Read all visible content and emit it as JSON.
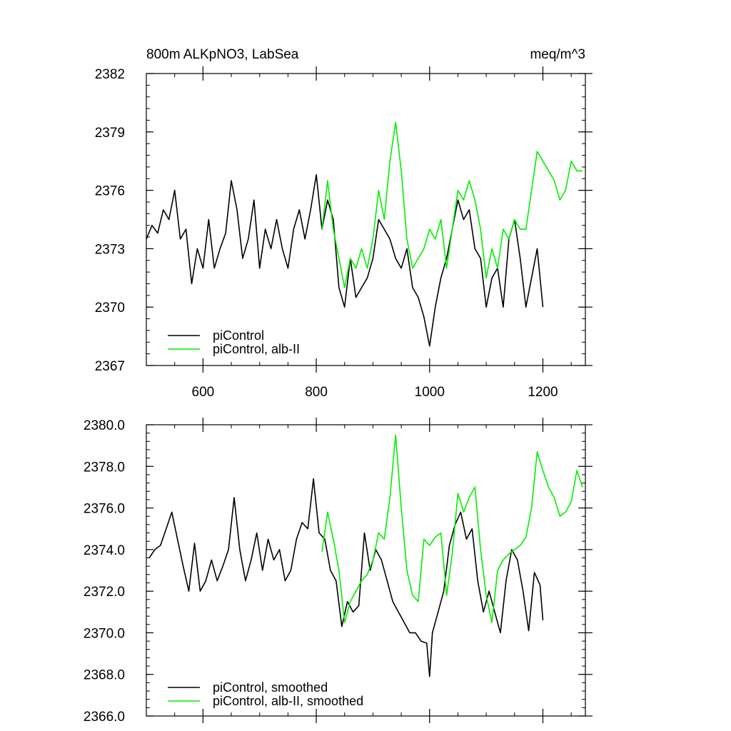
{
  "colors": {
    "black_series": "#000000",
    "green_series": "#00ee00"
  },
  "chart_data": [
    {
      "type": "line",
      "title": "800m ALKpNO3, LabSea",
      "units": "meq/m^3",
      "xlim": [
        500,
        1275
      ],
      "ylim": [
        2367,
        2382
      ],
      "x_ticks": [
        600,
        800,
        1000,
        1200
      ],
      "x_tick_labels": [
        "600",
        "800",
        "1000",
        "1200"
      ],
      "y_ticks": [
        2367,
        2370,
        2373,
        2376,
        2379,
        2382
      ],
      "y_tick_labels": [
        "2367",
        "2370",
        "2373",
        "2376",
        "2379",
        "2382"
      ],
      "legend_position": "bottom-left",
      "grid": false,
      "series": [
        {
          "name": "piControl",
          "color": "#000000",
          "x": [
            500,
            510,
            520,
            530,
            540,
            550,
            560,
            570,
            580,
            590,
            600,
            610,
            620,
            630,
            640,
            650,
            660,
            670,
            680,
            690,
            700,
            710,
            720,
            730,
            740,
            750,
            760,
            770,
            780,
            790,
            800,
            810,
            820,
            830,
            840,
            850,
            860,
            870,
            880,
            890,
            900,
            910,
            920,
            930,
            940,
            950,
            960,
            970,
            980,
            990,
            1000,
            1010,
            1020,
            1030,
            1040,
            1050,
            1060,
            1070,
            1080,
            1090,
            1100,
            1110,
            1120,
            1130,
            1140,
            1150,
            1160,
            1170,
            1180,
            1190,
            1200
          ],
          "values": [
            2373.5,
            2374.2,
            2373.8,
            2375.0,
            2374.5,
            2376.0,
            2373.5,
            2374.0,
            2371.2,
            2373.0,
            2372.0,
            2374.5,
            2372.0,
            2373.0,
            2373.8,
            2376.5,
            2375.0,
            2372.5,
            2373.5,
            2375.5,
            2372.0,
            2374.0,
            2373.0,
            2374.5,
            2373.0,
            2372.0,
            2374.0,
            2375.0,
            2373.5,
            2375.0,
            2376.8,
            2374.0,
            2375.5,
            2374.5,
            2371.0,
            2370.0,
            2372.5,
            2370.5,
            2371.0,
            2371.5,
            2372.5,
            2374.5,
            2374.0,
            2373.5,
            2372.5,
            2372.0,
            2373.0,
            2371.0,
            2370.5,
            2369.5,
            2368.0,
            2370.0,
            2371.5,
            2372.5,
            2374.0,
            2375.5,
            2374.5,
            2375.0,
            2373.0,
            2372.5,
            2370.0,
            2371.5,
            2372.0,
            2370.0,
            2373.5,
            2374.5,
            2372.5,
            2370.0,
            2371.5,
            2373.0,
            2370.0
          ]
        },
        {
          "name": "piControl, alb-II",
          "color": "#00ee00",
          "x": [
            810,
            820,
            830,
            840,
            850,
            860,
            870,
            880,
            890,
            900,
            910,
            920,
            930,
            940,
            950,
            960,
            970,
            980,
            990,
            1000,
            1010,
            1020,
            1030,
            1040,
            1050,
            1060,
            1070,
            1080,
            1090,
            1100,
            1110,
            1120,
            1130,
            1140,
            1150,
            1160,
            1170,
            1180,
            1190,
            1200,
            1210,
            1220,
            1230,
            1240,
            1250,
            1260,
            1270
          ],
          "values": [
            2374.0,
            2376.5,
            2374.0,
            2372.5,
            2371.0,
            2372.5,
            2372.0,
            2373.0,
            2372.0,
            2373.5,
            2376.0,
            2374.5,
            2377.5,
            2379.5,
            2377.0,
            2373.5,
            2372.0,
            2372.5,
            2373.0,
            2374.0,
            2373.5,
            2374.5,
            2372.0,
            2374.0,
            2376.0,
            2375.5,
            2376.5,
            2375.5,
            2374.0,
            2371.5,
            2373.0,
            2372.0,
            2374.0,
            2373.5,
            2374.5,
            2374.0,
            2374.0,
            2376.0,
            2378.0,
            2377.5,
            2377.0,
            2376.5,
            2375.5,
            2376.0,
            2377.5,
            2377.0,
            2377.0
          ]
        }
      ]
    },
    {
      "type": "line",
      "title": "",
      "units": "",
      "xlim": [
        500,
        1275
      ],
      "ylim": [
        2366.0,
        2380.0
      ],
      "x_ticks": [
        600,
        800,
        1000,
        1200
      ],
      "x_tick_labels": [],
      "y_ticks": [
        2366.0,
        2368.0,
        2370.0,
        2372.0,
        2374.0,
        2376.0,
        2378.0,
        2380.0
      ],
      "y_tick_labels": [
        "2366.0",
        "2368.0",
        "2370.0",
        "2372.0",
        "2374.0",
        "2376.0",
        "2378.0",
        "2380.0"
      ],
      "legend_position": "bottom-left",
      "grid": false,
      "series": [
        {
          "name": "piControl, smoothed",
          "color": "#000000",
          "x": [
            505,
            515,
            525,
            535,
            545,
            555,
            565,
            575,
            585,
            595,
            605,
            615,
            625,
            635,
            645,
            655,
            665,
            675,
            685,
            695,
            705,
            715,
            725,
            735,
            745,
            755,
            765,
            775,
            785,
            795,
            805,
            815,
            825,
            835,
            845,
            855,
            865,
            875,
            885,
            895,
            905,
            915,
            925,
            935,
            945,
            955,
            965,
            975,
            985,
            995,
            1000,
            1005,
            1015,
            1025,
            1035,
            1045,
            1055,
            1065,
            1075,
            1085,
            1095,
            1105,
            1115,
            1125,
            1135,
            1145,
            1155,
            1165,
            1175,
            1185,
            1195,
            1200
          ],
          "values": [
            2373.6,
            2374.0,
            2374.2,
            2375.0,
            2375.8,
            2374.5,
            2373.2,
            2372.0,
            2374.3,
            2372.0,
            2372.5,
            2373.5,
            2372.5,
            2373.2,
            2374.0,
            2376.5,
            2374.0,
            2372.5,
            2373.5,
            2374.8,
            2373.0,
            2374.5,
            2373.5,
            2374.0,
            2372.5,
            2373.0,
            2374.5,
            2375.3,
            2375.0,
            2377.4,
            2374.8,
            2374.5,
            2373.0,
            2372.5,
            2370.3,
            2371.5,
            2371.0,
            2371.3,
            2374.8,
            2373.0,
            2374.0,
            2373.5,
            2372.5,
            2371.5,
            2371.0,
            2370.5,
            2370.0,
            2370.0,
            2369.6,
            2369.5,
            2367.9,
            2370.0,
            2371.0,
            2372.0,
            2374.2,
            2375.2,
            2375.8,
            2374.5,
            2375.0,
            2372.5,
            2371.0,
            2372.0,
            2371.0,
            2370.0,
            2372.5,
            2374.0,
            2373.5,
            2372.0,
            2370.1,
            2372.9,
            2372.3,
            2370.6
          ]
        },
        {
          "name": "piControl, alb-II, smoothed",
          "color": "#00ee00",
          "x": [
            810,
            820,
            830,
            840,
            850,
            860,
            870,
            880,
            890,
            900,
            910,
            920,
            930,
            940,
            950,
            960,
            970,
            980,
            990,
            1000,
            1010,
            1020,
            1030,
            1040,
            1050,
            1060,
            1070,
            1080,
            1090,
            1100,
            1110,
            1120,
            1130,
            1140,
            1150,
            1160,
            1170,
            1180,
            1190,
            1200,
            1210,
            1220,
            1230,
            1240,
            1250,
            1260,
            1270
          ],
          "values": [
            2373.9,
            2375.8,
            2374.5,
            2373.0,
            2370.5,
            2371.5,
            2372.0,
            2372.5,
            2372.8,
            2373.5,
            2374.8,
            2374.5,
            2376.5,
            2379.5,
            2376.0,
            2373.0,
            2371.8,
            2371.5,
            2374.5,
            2374.2,
            2374.6,
            2374.8,
            2371.8,
            2373.8,
            2376.7,
            2375.8,
            2376.5,
            2377.0,
            2374.0,
            2371.8,
            2370.5,
            2373.0,
            2373.5,
            2373.8,
            2374.0,
            2374.2,
            2374.6,
            2376.0,
            2378.7,
            2377.8,
            2377.0,
            2376.5,
            2375.6,
            2375.8,
            2376.3,
            2377.8,
            2377.0
          ]
        }
      ]
    }
  ]
}
